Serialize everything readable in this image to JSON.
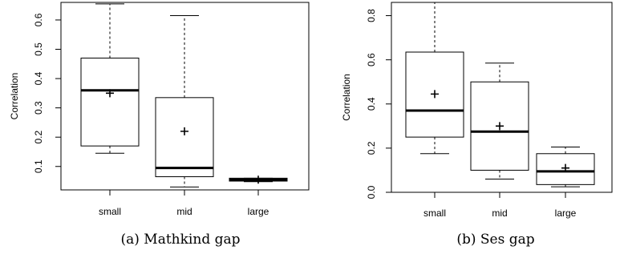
{
  "chart_data": [
    {
      "type": "boxplot",
      "caption": "(a) Mathkind gap",
      "ylabel": "Correlation",
      "xlabel": "",
      "ylim": [
        0.02,
        0.66
      ],
      "yticks": [
        0.1,
        0.2,
        0.3,
        0.4,
        0.5,
        0.6
      ],
      "categories": [
        "small",
        "mid",
        "large"
      ],
      "boxes": [
        {
          "category": "small",
          "whisker_low": 0.145,
          "q1": 0.17,
          "median": 0.36,
          "q3": 0.47,
          "whisker_high": 0.655,
          "mean": 0.35
        },
        {
          "category": "mid",
          "whisker_low": 0.03,
          "q1": 0.065,
          "median": 0.095,
          "q3": 0.335,
          "whisker_high": 0.615,
          "mean": 0.22
        },
        {
          "category": "large",
          "whisker_low": 0.048,
          "q1": 0.05,
          "median": 0.055,
          "q3": 0.06,
          "whisker_high": 0.06,
          "mean": 0.055
        }
      ]
    },
    {
      "type": "boxplot",
      "caption": "(b) Ses gap",
      "ylabel": "Correlation",
      "xlabel": "",
      "ylim": [
        0.0,
        0.86
      ],
      "yticks": [
        0.0,
        0.2,
        0.4,
        0.6,
        0.8
      ],
      "categories": [
        "small",
        "mid",
        "large"
      ],
      "boxes": [
        {
          "category": "small",
          "whisker_low": 0.175,
          "q1": 0.25,
          "median": 0.37,
          "q3": 0.635,
          "whisker_high": 0.86,
          "mean": 0.445
        },
        {
          "category": "mid",
          "whisker_low": 0.06,
          "q1": 0.1,
          "median": 0.275,
          "q3": 0.5,
          "whisker_high": 0.585,
          "mean": 0.3
        },
        {
          "category": "large",
          "whisker_low": 0.025,
          "q1": 0.035,
          "median": 0.095,
          "q3": 0.175,
          "whisker_high": 0.205,
          "mean": 0.11
        }
      ]
    }
  ]
}
